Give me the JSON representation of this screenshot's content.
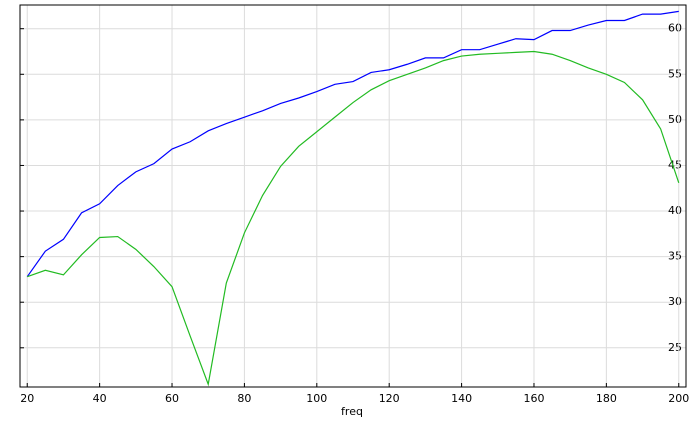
{
  "chart_data": {
    "type": "line",
    "x_label": "freq",
    "x": [
      20,
      25,
      30,
      35,
      40,
      45,
      50,
      55,
      60,
      65,
      70,
      75,
      80,
      85,
      90,
      95,
      100,
      105,
      110,
      115,
      120,
      125,
      130,
      135,
      140,
      145,
      150,
      155,
      160,
      165,
      170,
      175,
      180,
      185,
      190,
      195,
      200
    ],
    "series": [
      {
        "color": "#0000ff",
        "values": [
          32.8,
          35.6,
          36.9,
          39.8,
          40.8,
          42.8,
          44.3,
          45.2,
          46.8,
          47.6,
          48.8,
          49.6,
          50.3,
          51.0,
          51.8,
          52.4,
          53.1,
          53.9,
          54.2,
          55.2,
          55.5,
          56.1,
          56.8,
          56.8,
          57.7,
          57.7,
          58.3,
          58.9,
          58.8,
          59.8,
          59.8,
          60.4,
          60.9,
          60.9,
          61.6,
          61.6,
          61.9
        ]
      },
      {
        "color": "#22bb22",
        "values": [
          32.8,
          33.5,
          33.0,
          35.2,
          37.1,
          37.2,
          35.8,
          33.9,
          31.7,
          26.3,
          21.0,
          32.1,
          37.6,
          41.7,
          44.9,
          47.1,
          48.7,
          50.3,
          51.9,
          53.3,
          54.3,
          55.0,
          55.7,
          56.5,
          57.0,
          57.2,
          57.3,
          57.4,
          57.5,
          57.2,
          56.5,
          55.7,
          55.0,
          54.1,
          52.2,
          49.0,
          43.1
        ]
      }
    ],
    "xlim": [
      18,
      202
    ],
    "ylim": [
      20.7,
      62.6
    ],
    "xticks": [
      20,
      40,
      60,
      80,
      100,
      120,
      140,
      160,
      180,
      200
    ],
    "yticks": [
      25,
      30,
      35,
      40,
      45,
      50,
      55,
      60
    ],
    "grid": true
  }
}
